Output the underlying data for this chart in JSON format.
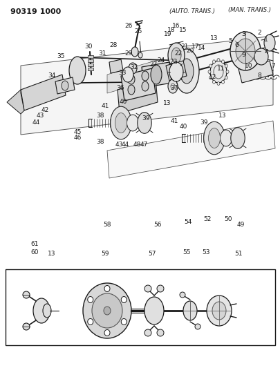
{
  "title": "90319 1000",
  "bg_color": "#ffffff",
  "fig_width": 4.06,
  "fig_height": 5.33,
  "dpi": 100,
  "dark": "#1a1a1a",
  "gray": "#888888",
  "lgray": "#cccccc",
  "dgray": "#555555",
  "part_labels_top": [
    [
      "1",
      385,
      57
    ],
    [
      "2",
      375,
      47
    ],
    [
      "3",
      352,
      50
    ],
    [
      "4",
      385,
      75
    ],
    [
      "5",
      333,
      60
    ],
    [
      "6",
      342,
      66
    ],
    [
      "7",
      395,
      95
    ],
    [
      "8",
      375,
      110
    ],
    [
      "9",
      352,
      80
    ],
    [
      "10",
      360,
      95
    ],
    [
      "11",
      320,
      100
    ],
    [
      "12",
      308,
      112
    ],
    [
      "13",
      310,
      55
    ],
    [
      "14",
      292,
      70
    ],
    [
      "15",
      265,
      43
    ],
    [
      "16",
      255,
      37
    ],
    [
      "17",
      283,
      68
    ],
    [
      "18",
      248,
      43
    ],
    [
      "19",
      243,
      50
    ],
    [
      "20",
      275,
      73
    ],
    [
      "21",
      267,
      67
    ],
    [
      "22",
      258,
      77
    ],
    [
      "23",
      251,
      90
    ],
    [
      "24",
      233,
      87
    ],
    [
      "25",
      200,
      45
    ],
    [
      "26",
      186,
      37
    ],
    [
      "27",
      222,
      93
    ],
    [
      "28",
      164,
      65
    ],
    [
      "29",
      186,
      78
    ],
    [
      "30",
      128,
      67
    ],
    [
      "31",
      148,
      78
    ],
    [
      "32",
      194,
      98
    ],
    [
      "33",
      177,
      105
    ],
    [
      "34",
      75,
      110
    ],
    [
      "35",
      88,
      82
    ],
    [
      "36",
      174,
      128
    ],
    [
      "37",
      252,
      128
    ]
  ],
  "part_labels_mid": [
    [
      "40",
      178,
      148
    ],
    [
      "41",
      152,
      154
    ],
    [
      "42",
      65,
      160
    ],
    [
      "43",
      58,
      168
    ],
    [
      "44",
      52,
      177
    ],
    [
      "13",
      242,
      150
    ],
    [
      "38",
      145,
      168
    ],
    [
      "39",
      211,
      172
    ],
    [
      "45",
      112,
      192
    ],
    [
      "46",
      112,
      200
    ],
    [
      "38",
      145,
      205
    ],
    [
      "13",
      322,
      168
    ],
    [
      "39",
      295,
      178
    ],
    [
      "40",
      265,
      183
    ],
    [
      "41",
      252,
      175
    ],
    [
      "48",
      198,
      210
    ],
    [
      "47",
      208,
      210
    ],
    [
      "44",
      181,
      210
    ],
    [
      "43",
      172,
      210
    ]
  ],
  "part_labels_bot": [
    [
      "61",
      50,
      353
    ],
    [
      "60",
      50,
      365
    ],
    [
      "13",
      75,
      368
    ],
    [
      "58",
      155,
      325
    ],
    [
      "59",
      152,
      368
    ],
    [
      "56",
      228,
      325
    ],
    [
      "57",
      220,
      368
    ],
    [
      "54",
      272,
      322
    ],
    [
      "55",
      270,
      365
    ],
    [
      "52",
      300,
      318
    ],
    [
      "53",
      298,
      365
    ],
    [
      "50",
      330,
      318
    ],
    [
      "49",
      348,
      325
    ],
    [
      "51",
      345,
      368
    ]
  ],
  "auto_trans_label": [
    12,
    245,
    "(AUTO. TRANS.)"
  ],
  "man_trans_label": [
    10,
    330,
    "(MAN. TRANS.)"
  ]
}
